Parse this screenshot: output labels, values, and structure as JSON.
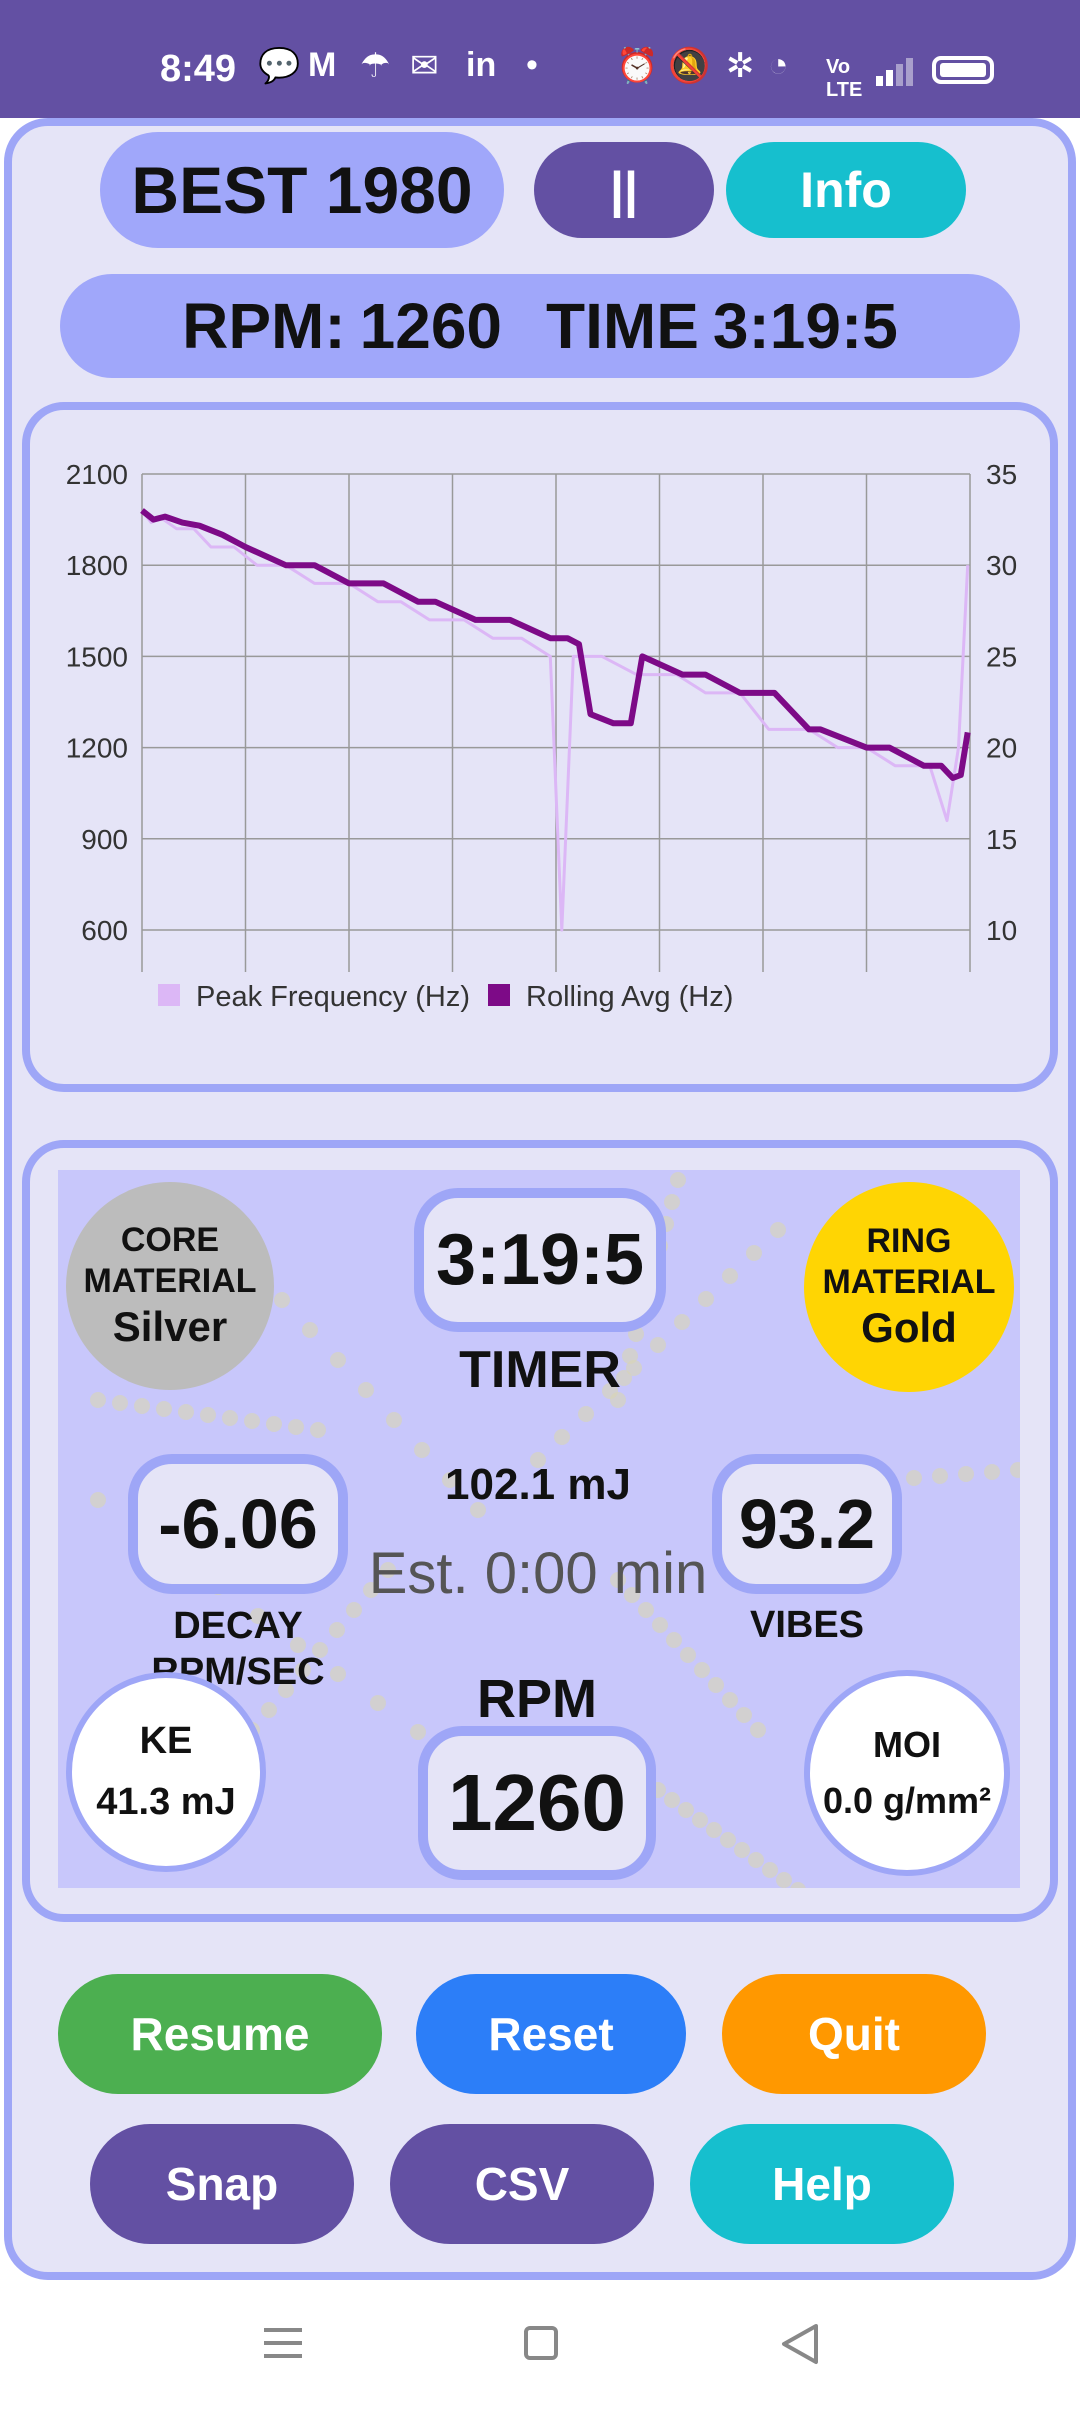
{
  "status_bar": {
    "time": "8:49",
    "icons": [
      "speech-bubble-icon",
      "gmail-icon",
      "umbrella-icon",
      "outlook-icon",
      "linkedin-icon",
      "dot-icon",
      "alarm-icon",
      "mute-icon",
      "bluetooth-icon",
      "wifi-icon",
      "volte-icon",
      "signal-icon",
      "battery-icon"
    ]
  },
  "header": {
    "best_label": "BEST 1980",
    "pause_label": "||",
    "info_label": "Info",
    "rpm_label": "RPM:",
    "rpm_value": "1260",
    "time_label": "TIME",
    "time_value": "3:19:5"
  },
  "chart_data": {
    "type": "line",
    "left_axis": {
      "ylim": [
        600,
        2100
      ],
      "ticks": [
        "2100",
        "1800",
        "1500",
        "1200",
        "900",
        "600"
      ]
    },
    "right_axis": {
      "ylim": [
        10,
        35
      ],
      "ticks": [
        "35",
        "30",
        "25",
        "20",
        "15",
        "10"
      ]
    },
    "grid": true,
    "legend_position": "bottom",
    "series": [
      {
        "name": "Peak Frequency (Hz)",
        "color": "#dcb7f6",
        "values": [
          [
            0.0,
            1980
          ],
          [
            0.8,
            1940
          ],
          [
            1.5,
            1960
          ],
          [
            3.0,
            1920
          ],
          [
            4.5,
            1920
          ],
          [
            6.0,
            1860
          ],
          [
            8.0,
            1860
          ],
          [
            10.0,
            1800
          ],
          [
            12.5,
            1800
          ],
          [
            15.0,
            1740
          ],
          [
            18.0,
            1740
          ],
          [
            20.5,
            1680
          ],
          [
            22.5,
            1680
          ],
          [
            25.0,
            1620
          ],
          [
            28.0,
            1620
          ],
          [
            30.5,
            1560
          ],
          [
            33.0,
            1560
          ],
          [
            35.5,
            1500
          ],
          [
            36.5,
            600
          ],
          [
            37.5,
            1500
          ],
          [
            40.0,
            1500
          ],
          [
            43.0,
            1440
          ],
          [
            46.5,
            1440
          ],
          [
            49.0,
            1380
          ],
          [
            52.0,
            1380
          ],
          [
            54.5,
            1260
          ],
          [
            58.0,
            1260
          ],
          [
            60.5,
            1200
          ],
          [
            63.0,
            1200
          ],
          [
            65.5,
            1140
          ],
          [
            68.5,
            1140
          ],
          [
            70.0,
            960
          ],
          [
            71.0,
            1200
          ],
          [
            71.8,
            1800
          ]
        ]
      },
      {
        "name": "Rolling Avg (Hz)",
        "color": "#7d0a87",
        "values": [
          [
            0.0,
            1980
          ],
          [
            1.0,
            1950
          ],
          [
            2.0,
            1960
          ],
          [
            3.5,
            1940
          ],
          [
            5.0,
            1930
          ],
          [
            7.0,
            1900
          ],
          [
            9.0,
            1860
          ],
          [
            12.5,
            1800
          ],
          [
            15.0,
            1800
          ],
          [
            18.0,
            1740
          ],
          [
            21.0,
            1740
          ],
          [
            24.0,
            1680
          ],
          [
            25.5,
            1680
          ],
          [
            29.0,
            1620
          ],
          [
            32.0,
            1620
          ],
          [
            35.5,
            1560
          ],
          [
            37.0,
            1560
          ],
          [
            38.0,
            1540
          ],
          [
            39.0,
            1310
          ],
          [
            41.0,
            1280
          ],
          [
            42.5,
            1280
          ],
          [
            43.5,
            1500
          ],
          [
            47.0,
            1440
          ],
          [
            49.0,
            1440
          ],
          [
            52.0,
            1380
          ],
          [
            55.0,
            1380
          ],
          [
            58.0,
            1260
          ],
          [
            59.0,
            1260
          ],
          [
            63.0,
            1200
          ],
          [
            65.0,
            1200
          ],
          [
            68.0,
            1140
          ],
          [
            69.5,
            1140
          ],
          [
            70.5,
            1100
          ],
          [
            71.2,
            1110
          ],
          [
            71.8,
            1250
          ]
        ]
      }
    ]
  },
  "dashboard": {
    "core": {
      "label_line1": "CORE",
      "label_line2": "MATERIAL",
      "value": "Silver",
      "color": "#bcbcbc"
    },
    "ring": {
      "label_line1": "RING",
      "label_line2": "MATERIAL",
      "value": "Gold",
      "color": "#ffd503"
    },
    "timer": {
      "value": "3:19:5",
      "label": "TIMER"
    },
    "energy": "102.1 mJ",
    "estimate": "Est. 0:00 min",
    "decay": {
      "value": "-6.06",
      "label_line1": "DECAY",
      "label_line2": "RPM/SEC"
    },
    "vibes": {
      "value": "93.2",
      "label": "VIBES"
    },
    "ke": {
      "label": "KE",
      "value": "41.3 mJ"
    },
    "rpm": {
      "label": "RPM",
      "value": "1260"
    },
    "moi": {
      "label": "MOI",
      "value": "0.0 g/mm²"
    }
  },
  "buttons": {
    "resume": "Resume",
    "reset": "Reset",
    "quit": "Quit",
    "snap": "Snap",
    "csv": "CSV",
    "help": "Help"
  },
  "colors": {
    "accent_purple": "#6350a3",
    "accent_cyan": "#16bfce",
    "pill_blue": "#a0a7fa",
    "panel_border": "#9ea6f7",
    "green": "#4caf50",
    "blue": "#2c7ef8",
    "orange": "#ff9800"
  }
}
